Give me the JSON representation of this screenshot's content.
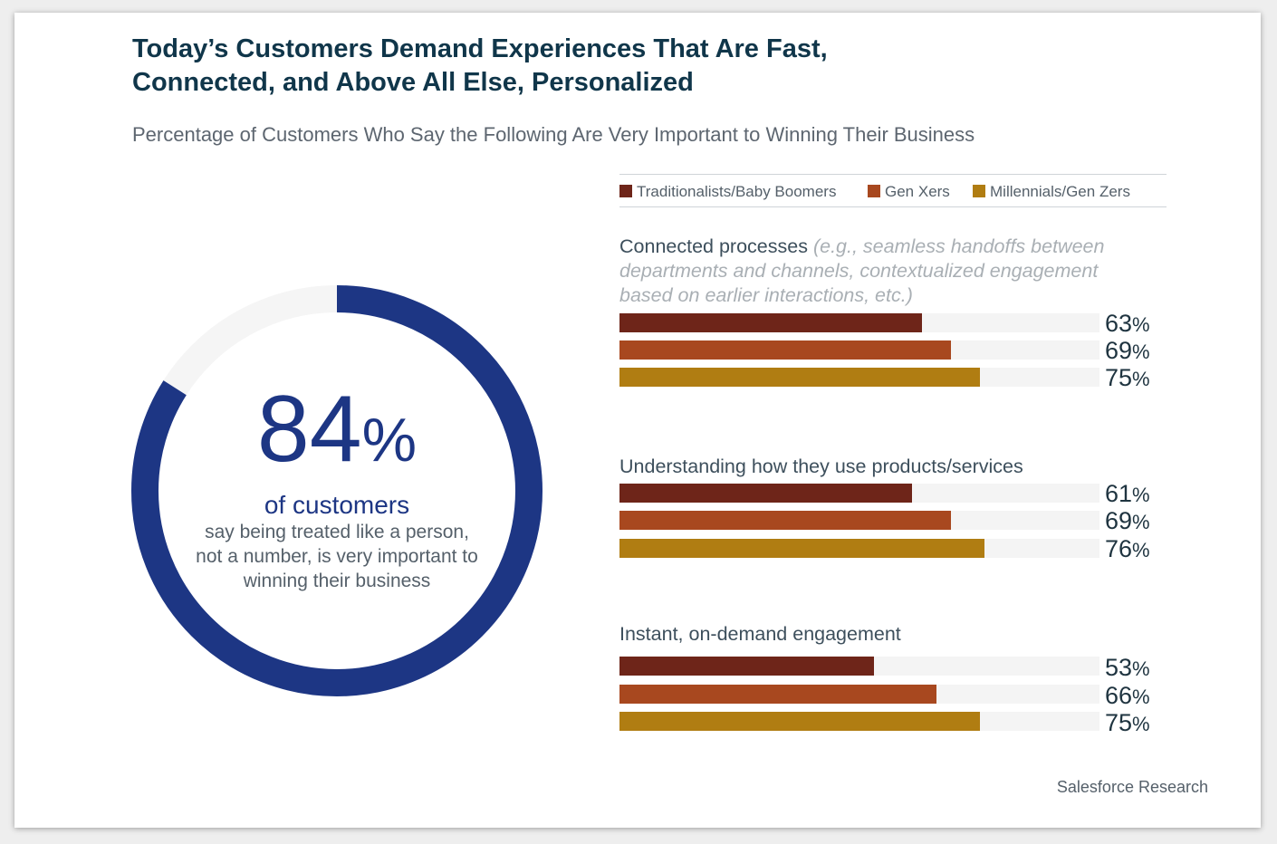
{
  "title_line1": "Today’s Customers Demand Experiences That Are Fast,",
  "title_line2": "Connected, and Above All Else, Personalized",
  "subtitle": "Percentage of Customers Who Say the Following Are Very Important to Winning Their Business",
  "source": "Salesforce Research",
  "highlight": {
    "value": 84,
    "value_text": "84",
    "percent_sign": "%",
    "lead": "of customers",
    "text": "say being treated like a person, not a number, is very important to winning their business",
    "ring_color": "#1d3684",
    "track_color": "#f5f5f5"
  },
  "chart_data": {
    "type": "bar",
    "orientation": "horizontal",
    "xlim": [
      0,
      100
    ],
    "legend": {
      "placement": "top",
      "items": [
        {
          "name": "Traditionalists/Baby Boomers",
          "color": "#6e2519"
        },
        {
          "name": "Gen Xers",
          "color": "#a8481f"
        },
        {
          "name": "Millennials/Gen Zers",
          "color": "#b07d12"
        }
      ]
    },
    "groups": [
      {
        "label": "Connected processes",
        "note": "(e.g., seamless handoffs between departments and channels, contextualized engagement based on earlier interactions, etc.)",
        "values": [
          63,
          69,
          75
        ],
        "value_labels": [
          "63",
          "69",
          "75"
        ]
      },
      {
        "label": "Understanding how they use products/services",
        "note": "",
        "values": [
          61,
          69,
          76
        ],
        "value_labels": [
          "61",
          "69",
          "76"
        ]
      },
      {
        "label": "Instant, on-demand engagement",
        "note": "",
        "values": [
          53,
          66,
          75
        ],
        "value_labels": [
          "53",
          "66",
          "75"
        ]
      }
    ],
    "percent_sign": "%"
  }
}
